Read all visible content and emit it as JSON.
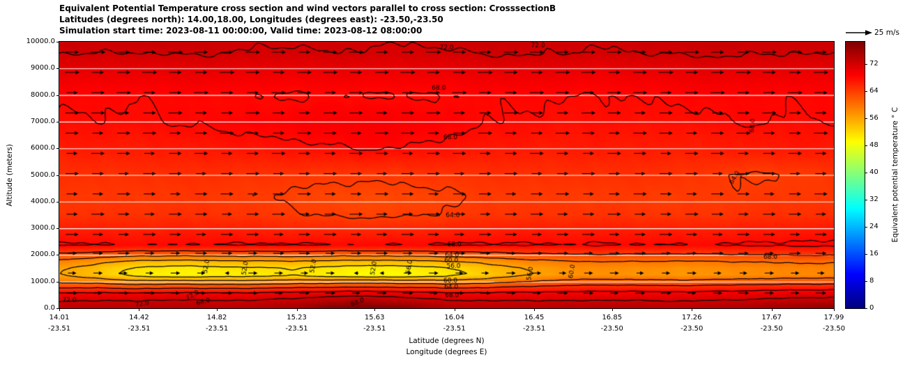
{
  "title": {
    "line1": "Equivalent Potential Temperature cross section and wind vectors parallel to cross section: CrosssectionB",
    "line2": "Latitudes (degrees north): 14.00,18.00, Longitudes (degrees east): -23.50,-23.50",
    "line3": "Simulation start time: 2023-08-11 00:00:00, Valid time: 2023-08-12 08:00:00"
  },
  "axes": {
    "ylabel": "Altitude (meters)",
    "xlabel_lat": "Latitude (degrees N)",
    "xlabel_lon": "Longitude (degrees E)",
    "ytick_values": [
      0,
      1000,
      2000,
      3000,
      4000,
      5000,
      6000,
      7000,
      8000,
      9000,
      10000
    ],
    "ytick_labels": [
      "0.0",
      "1000.0",
      "2000.0",
      "3000.0",
      "4000.0",
      "5000.0",
      "6000.0",
      "7000.0",
      "8000.0",
      "9000.0",
      "10000.0"
    ],
    "xticks": [
      {
        "lat": "14.01",
        "lon": "-23.51"
      },
      {
        "lat": "14.42",
        "lon": "-23.51"
      },
      {
        "lat": "14.82",
        "lon": "-23.51"
      },
      {
        "lat": "15.23",
        "lon": "-23.51"
      },
      {
        "lat": "15.63",
        "lon": "-23.51"
      },
      {
        "lat": "16.04",
        "lon": "-23.51"
      },
      {
        "lat": "16.45",
        "lon": "-23.51"
      },
      {
        "lat": "16.85",
        "lon": "-23.50"
      },
      {
        "lat": "17.26",
        "lon": "-23.50"
      },
      {
        "lat": "17.67",
        "lon": "-23.50"
      },
      {
        "lat": "17.99",
        "lon": "-23.50"
      }
    ],
    "lat_min": 14.01,
    "lat_max": 17.99
  },
  "colorbar": {
    "label": "Equivalent potential temperature ° C",
    "ticks": [
      "0",
      "8",
      "16",
      "24",
      "32",
      "40",
      "48",
      "56",
      "64",
      "72"
    ],
    "tick_values": [
      0,
      8,
      16,
      24,
      32,
      40,
      48,
      56,
      64,
      72
    ],
    "vmin": 0,
    "vmax": 78.5,
    "colormap": "jet",
    "bottom_color": "#00007f",
    "top_color": "#7f0000"
  },
  "quiver_key": {
    "label": "25 m/s",
    "speed_ms": 25
  },
  "chart_data": {
    "type": "heatmap",
    "overlays": [
      "contour-lines",
      "wind-vector-quiver"
    ],
    "title": "Equivalent Potential Temperature cross section and wind vectors parallel to cross section: CrosssectionB",
    "units": "degrees C",
    "x_lat": [
      14.01,
      14.21,
      14.41,
      14.61,
      14.81,
      15.01,
      15.2,
      15.4,
      15.6,
      15.8,
      16.0,
      16.2,
      16.4,
      16.6,
      16.8,
      17.0,
      17.19,
      17.39,
      17.59,
      17.79,
      17.99
    ],
    "altitudes": [
      0,
      250,
      500,
      750,
      1000,
      1250,
      1500,
      1750,
      2000,
      2350,
      2800,
      3500,
      4200,
      5000,
      6000,
      6500,
      7000,
      8000,
      9000,
      9500,
      10000
    ],
    "theta_e_grid": [
      [
        73.5,
        74.5,
        73.8,
        74.8,
        74.2,
        74.6,
        75.5,
        78.5,
        79.0,
        77.5,
        74.8,
        74.2,
        74.6,
        74.3,
        74.8,
        74.5,
        74.2,
        74.6,
        75.5,
        76.5,
        77.5
      ],
      [
        72.0,
        72.5,
        72.2,
        72.8,
        72.4,
        72.6,
        73.2,
        74.5,
        75.0,
        73.8,
        72.6,
        72.3,
        72.5,
        72.3,
        72.6,
        72.4,
        72.2,
        72.5,
        73.0,
        73.5,
        74.0
      ],
      [
        69.5,
        70.0,
        69.8,
        70.2,
        69.9,
        70.0,
        70.5,
        71.2,
        71.5,
        70.8,
        70.0,
        69.8,
        70.0,
        69.8,
        70.0,
        69.9,
        69.8,
        70.0,
        70.4,
        70.8,
        71.0
      ],
      [
        64.0,
        64.5,
        63.5,
        64.2,
        63.8,
        64.0,
        64.5,
        65.0,
        65.2,
        64.8,
        64.2,
        64.5,
        65.5,
        66.0,
        66.5,
        66.2,
        66.0,
        66.3,
        66.8,
        67.0,
        67.2
      ],
      [
        59.0,
        58.5,
        57.0,
        57.5,
        57.0,
        57.2,
        57.8,
        58.2,
        58.5,
        58.0,
        57.6,
        58.5,
        60.0,
        61.0,
        61.5,
        61.2,
        61.0,
        61.3,
        61.8,
        62.0,
        62.2
      ],
      [
        56.0,
        53.5,
        50.5,
        49.5,
        50.0,
        50.5,
        51.0,
        50.0,
        49.0,
        49.5,
        50.5,
        53.0,
        55.5,
        57.0,
        57.5,
        57.2,
        57.0,
        57.3,
        57.8,
        58.0,
        58.2
      ],
      [
        56.5,
        54.0,
        51.5,
        50.5,
        51.0,
        51.5,
        52.0,
        51.0,
        50.0,
        50.5,
        51.5,
        54.0,
        56.0,
        57.5,
        58.0,
        57.8,
        57.5,
        57.8,
        58.2,
        58.5,
        58.6
      ],
      [
        59.0,
        57.0,
        55.0,
        54.5,
        55.0,
        55.2,
        55.5,
        55.0,
        54.5,
        55.0,
        55.5,
        57.0,
        58.5,
        59.5,
        60.0,
        59.8,
        59.6,
        59.8,
        60.2,
        60.4,
        60.5
      ],
      [
        63.0,
        62.0,
        61.0,
        60.8,
        61.0,
        61.2,
        61.5,
        61.0,
        60.8,
        61.0,
        61.5,
        62.2,
        63.0,
        63.5,
        63.8,
        63.6,
        63.5,
        63.6,
        64.0,
        64.2,
        64.3
      ],
      [
        68.4,
        68.2,
        68.0,
        68.1,
        68.2,
        68.3,
        68.4,
        68.2,
        68.1,
        68.2,
        68.3,
        68.4,
        68.3,
        68.2,
        68.3,
        68.2,
        68.1,
        68.2,
        68.4,
        68.5,
        68.5
      ],
      [
        67.0,
        66.8,
        66.6,
        66.8,
        66.9,
        66.7,
        66.5,
        66.3,
        66.2,
        66.4,
        66.6,
        66.8,
        66.9,
        66.8,
        66.9,
        66.8,
        66.7,
        66.8,
        67.0,
        67.1,
        67.1
      ],
      [
        65.0,
        64.9,
        64.8,
        65.0,
        64.9,
        64.6,
        64.2,
        63.8,
        63.6,
        63.8,
        64.2,
        64.6,
        64.8,
        64.7,
        64.8,
        64.7,
        64.6,
        64.7,
        64.9,
        65.0,
        65.0
      ],
      [
        64.4,
        64.5,
        64.4,
        64.6,
        64.4,
        64.1,
        63.7,
        63.3,
        63.1,
        63.3,
        63.7,
        64.2,
        64.3,
        64.2,
        64.3,
        64.2,
        64.1,
        64.2,
        64.4,
        64.5,
        64.5
      ],
      [
        65.0,
        65.1,
        65.0,
        65.2,
        65.1,
        64.9,
        64.7,
        64.5,
        64.4,
        64.6,
        64.8,
        65.0,
        65.1,
        65.0,
        65.1,
        65.0,
        64.9,
        64.3,
        63.7,
        64.1,
        64.6
      ],
      [
        66.6,
        66.7,
        66.6,
        66.8,
        67.0,
        67.2,
        67.5,
        67.8,
        68.2,
        67.9,
        67.4,
        67.0,
        66.8,
        66.6,
        66.7,
        66.6,
        66.5,
        66.6,
        66.8,
        66.9,
        66.9
      ],
      [
        67.2,
        67.3,
        67.2,
        67.5,
        67.7,
        68.0,
        68.3,
        68.6,
        68.9,
        68.6,
        68.1,
        67.6,
        67.3,
        67.1,
        67.2,
        67.1,
        67.0,
        67.1,
        67.3,
        67.4,
        67.4
      ],
      [
        67.8,
        67.9,
        67.8,
        68.1,
        68.3,
        68.6,
        68.9,
        69.2,
        69.4,
        69.1,
        68.6,
        68.1,
        67.8,
        67.6,
        67.7,
        67.6,
        67.5,
        67.9,
        68.3,
        67.7,
        68.1
      ],
      [
        68.4,
        68.3,
        68.1,
        68.3,
        68.2,
        68.0,
        67.8,
        68.1,
        67.9,
        67.8,
        68.0,
        68.2,
        68.3,
        68.1,
        67.9,
        68.1,
        68.3,
        68.5,
        68.3,
        68.2,
        68.3
      ],
      [
        70.8,
        70.6,
        70.5,
        70.7,
        70.5,
        70.3,
        70.2,
        70.4,
        70.2,
        70.2,
        70.4,
        70.6,
        70.6,
        70.4,
        70.2,
        70.4,
        70.6,
        70.8,
        70.6,
        70.6,
        70.6
      ],
      [
        71.9,
        71.9,
        71.8,
        72.0,
        72.0,
        71.7,
        71.5,
        71.9,
        71.7,
        71.5,
        71.6,
        72.0,
        72.1,
        71.9,
        71.7,
        71.9,
        72.0,
        72.2,
        72.0,
        71.9,
        72.0
      ],
      [
        72.8,
        72.6,
        72.8,
        72.9,
        72.6,
        72.3,
        72.2,
        72.5,
        72.2,
        72.1,
        72.4,
        72.8,
        72.6,
        72.3,
        72.2,
        72.5,
        72.8,
        72.9,
        72.6,
        72.5,
        72.8
      ]
    ],
    "contour_levels": [
      48,
      52,
      56,
      60,
      64,
      68,
      72
    ],
    "contour_labels": [
      {
        "text": "72.0",
        "fx": 0.5,
        "fy": 0.022,
        "rot": 0
      },
      {
        "text": "72.0",
        "fx": 0.618,
        "fy": 0.014,
        "rot": 0
      },
      {
        "text": "68.0",
        "fx": 0.49,
        "fy": 0.175,
        "rot": 0
      },
      {
        "text": "68.0",
        "fx": 0.505,
        "fy": 0.36,
        "rot": 0
      },
      {
        "text": "68.0",
        "fx": 0.895,
        "fy": 0.315,
        "rot": -85
      },
      {
        "text": "64.0",
        "fx": 0.508,
        "fy": 0.653,
        "rot": 0
      },
      {
        "text": "64.0",
        "fx": 0.872,
        "fy": 0.51,
        "rot": -60
      },
      {
        "text": "68.0",
        "fx": 0.51,
        "fy": 0.762,
        "rot": 0
      },
      {
        "text": "64.0",
        "fx": 0.507,
        "fy": 0.8,
        "rot": 0
      },
      {
        "text": "60.0",
        "fx": 0.506,
        "fy": 0.822,
        "rot": 0
      },
      {
        "text": "56.0",
        "fx": 0.509,
        "fy": 0.842,
        "rot": 0
      },
      {
        "text": "52.0",
        "fx": 0.19,
        "fy": 0.843,
        "rot": -80
      },
      {
        "text": "52.0",
        "fx": 0.24,
        "fy": 0.85,
        "rot": -80
      },
      {
        "text": "52.0",
        "fx": 0.328,
        "fy": 0.842,
        "rot": -80
      },
      {
        "text": "52.0",
        "fx": 0.406,
        "fy": 0.85,
        "rot": -80
      },
      {
        "text": "56.0",
        "fx": 0.452,
        "fy": 0.845,
        "rot": -80
      },
      {
        "text": "56.0",
        "fx": 0.608,
        "fy": 0.87,
        "rot": -80
      },
      {
        "text": "60.0",
        "fx": 0.662,
        "fy": 0.862,
        "rot": -80
      },
      {
        "text": "68.0",
        "fx": 0.918,
        "fy": 0.808,
        "rot": 0
      },
      {
        "text": "60.0",
        "fx": 0.505,
        "fy": 0.898,
        "rot": 0
      },
      {
        "text": "64.0",
        "fx": 0.506,
        "fy": 0.92,
        "rot": 0
      },
      {
        "text": "68.0",
        "fx": 0.507,
        "fy": 0.953,
        "rot": 0
      },
      {
        "text": "72.0",
        "fx": 0.013,
        "fy": 0.97,
        "rot": 0
      },
      {
        "text": "72.0",
        "fx": 0.107,
        "fy": 0.984,
        "rot": -10
      },
      {
        "text": "68.0",
        "fx": 0.186,
        "fy": 0.976,
        "rot": -15
      },
      {
        "text": "68.0",
        "fx": 0.385,
        "fy": 0.978,
        "rot": -20
      },
      {
        "text": "72.0",
        "fx": 0.172,
        "fy": 0.952,
        "rot": -30
      }
    ],
    "wind": {
      "direction": "parallel to cross section, pointing toward increasing latitude",
      "reference_ms": 25,
      "columns": 30,
      "row_altitudes_m": [
        9610,
        8850,
        8090,
        7330,
        6570,
        5810,
        5050,
        4290,
        3530,
        2770,
        2060,
        1320,
        570
      ],
      "row_speeds_ms": [
        16,
        16,
        15.5,
        15,
        15,
        14.5,
        14,
        14,
        14,
        13.5,
        12.5,
        10,
        11.5
      ],
      "negative_cells": [
        [
          11,
          6
        ],
        [
          11,
          11
        ],
        [
          11,
          12
        ]
      ],
      "negative_speed_ms": 5.5
    },
    "grid_lines": {
      "color": "#ffffff",
      "every_m": 1000
    }
  }
}
